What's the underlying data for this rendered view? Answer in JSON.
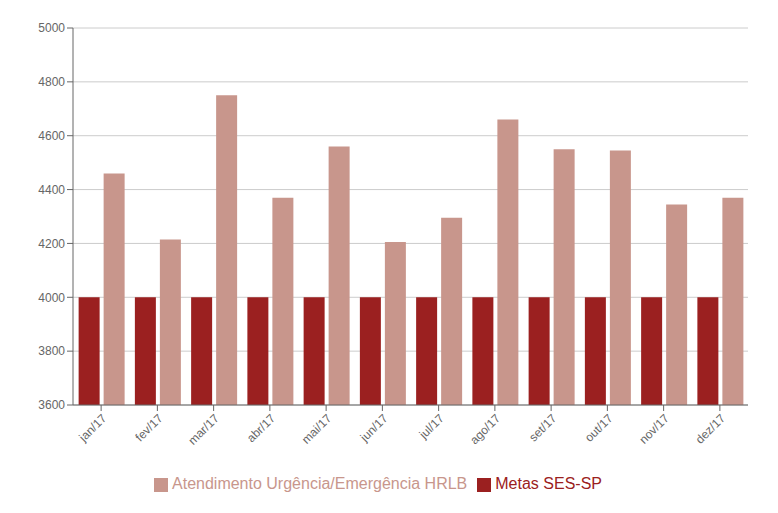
{
  "chart_data": {
    "type": "bar",
    "categories": [
      "jan/17",
      "fev/17",
      "mar/17",
      "abr/17",
      "mai/17",
      "jun/17",
      "jul/17",
      "ago/17",
      "set/17",
      "out/17",
      "nov/17",
      "dez/17"
    ],
    "series": [
      {
        "name": "Metas SES-SP",
        "color": "#9B2020",
        "values": [
          4000,
          4000,
          4000,
          4000,
          4000,
          4000,
          4000,
          4000,
          4000,
          4000,
          4000,
          4000
        ]
      },
      {
        "name": "Atendimento Urgência/Emergência HRLB",
        "color": "#C8968C",
        "values": [
          4460,
          4215,
          4750,
          4370,
          4560,
          4205,
          4295,
          4660,
          4550,
          4545,
          4345,
          4370
        ]
      }
    ],
    "ylim": [
      3600,
      5000
    ],
    "yticks": [
      3600,
      3800,
      4000,
      4200,
      4400,
      4600,
      4800,
      5000
    ],
    "grid": true,
    "legend": "bottom"
  }
}
